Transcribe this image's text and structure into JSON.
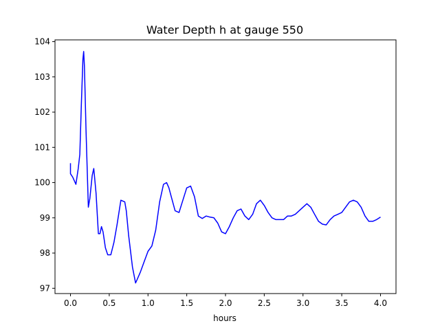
{
  "chart_data": {
    "type": "line",
    "title": "Water Depth h at gauge 550",
    "xlabel": "hours",
    "ylabel": "",
    "xlim": [
      -0.2,
      4.2
    ],
    "ylim": [
      96.85,
      104.05
    ],
    "xticks": [
      0.0,
      0.5,
      1.0,
      1.5,
      2.0,
      2.5,
      3.0,
      3.5,
      4.0
    ],
    "xtick_labels": [
      "0.0",
      "0.5",
      "1.0",
      "1.5",
      "2.0",
      "2.5",
      "3.0",
      "3.5",
      "4.0"
    ],
    "yticks": [
      97,
      98,
      99,
      100,
      101,
      102,
      103,
      104
    ],
    "ytick_labels": [
      "97",
      "98",
      "99",
      "100",
      "101",
      "102",
      "103",
      "104"
    ],
    "grid": false,
    "series": [
      {
        "color": "#0000ff",
        "x": [
          0.0,
          0.0,
          0.03,
          0.07,
          0.1,
          0.12,
          0.14,
          0.16,
          0.17,
          0.18,
          0.2,
          0.23,
          0.25,
          0.28,
          0.3,
          0.33,
          0.36,
          0.38,
          0.4,
          0.42,
          0.45,
          0.48,
          0.52,
          0.56,
          0.6,
          0.65,
          0.7,
          0.72,
          0.75,
          0.8,
          0.84,
          0.86,
          0.9,
          0.95,
          1.0,
          1.05,
          1.1,
          1.15,
          1.2,
          1.24,
          1.27,
          1.3,
          1.35,
          1.4,
          1.45,
          1.5,
          1.55,
          1.6,
          1.65,
          1.7,
          1.75,
          1.8,
          1.85,
          1.9,
          1.95,
          2.0,
          2.05,
          2.1,
          2.15,
          2.2,
          2.25,
          2.3,
          2.35,
          2.4,
          2.45,
          2.5,
          2.55,
          2.6,
          2.65,
          2.7,
          2.75,
          2.8,
          2.85,
          2.9,
          2.95,
          3.0,
          3.05,
          3.1,
          3.15,
          3.2,
          3.25,
          3.3,
          3.35,
          3.4,
          3.45,
          3.5,
          3.55,
          3.6,
          3.65,
          3.7,
          3.75,
          3.8,
          3.85,
          3.9,
          3.95,
          4.0
        ],
        "y": [
          100.55,
          100.25,
          100.15,
          99.95,
          100.4,
          100.8,
          102.2,
          103.5,
          103.72,
          103.3,
          101.5,
          99.3,
          99.55,
          100.2,
          100.4,
          99.7,
          98.55,
          98.55,
          98.75,
          98.6,
          98.15,
          97.95,
          97.95,
          98.3,
          98.8,
          99.5,
          99.45,
          99.2,
          98.5,
          97.6,
          97.15,
          97.25,
          97.45,
          97.75,
          98.05,
          98.2,
          98.65,
          99.45,
          99.95,
          100.0,
          99.85,
          99.6,
          99.2,
          99.15,
          99.5,
          99.85,
          99.9,
          99.6,
          99.05,
          98.98,
          99.05,
          99.02,
          99.0,
          98.85,
          98.6,
          98.55,
          98.75,
          99.0,
          99.2,
          99.25,
          99.05,
          98.95,
          99.1,
          99.4,
          99.5,
          99.35,
          99.15,
          99.0,
          98.95,
          98.95,
          98.95,
          99.05,
          99.05,
          99.1,
          99.2,
          99.3,
          99.4,
          99.3,
          99.1,
          98.9,
          98.82,
          98.8,
          98.95,
          99.05,
          99.1,
          99.15,
          99.3,
          99.45,
          99.5,
          99.45,
          99.3,
          99.05,
          98.9,
          98.9,
          98.95,
          99.02
        ]
      }
    ]
  }
}
